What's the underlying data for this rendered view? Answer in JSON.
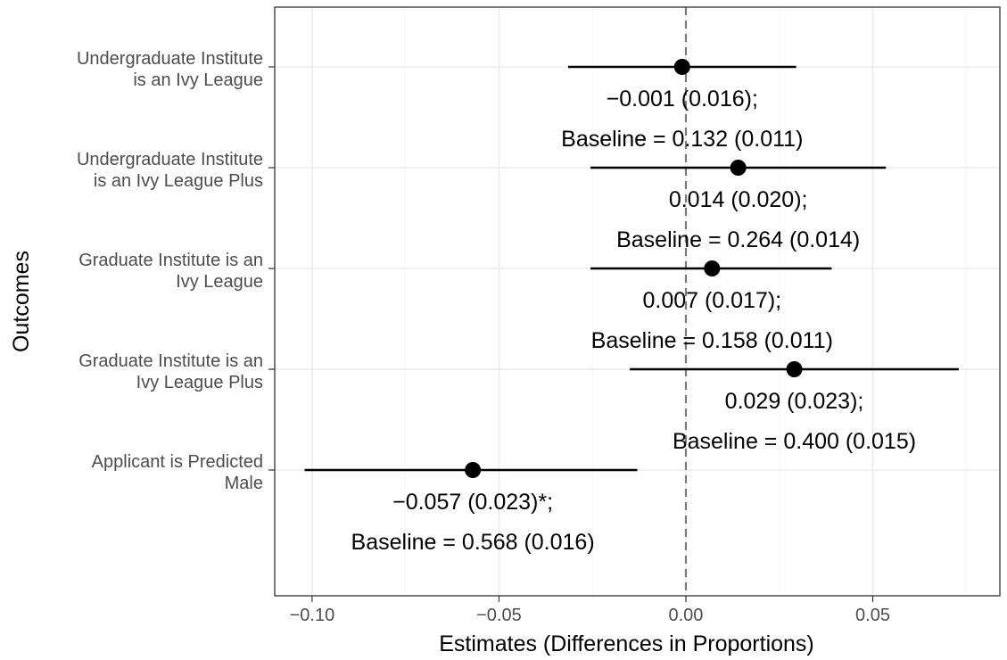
{
  "chart_data": {
    "type": "scatter",
    "title": "",
    "xlabel": "Estimates (Differences in Proportions)",
    "ylabel": "Outcomes",
    "xlim": [
      -0.11,
      0.084
    ],
    "xticks": [
      -0.1,
      -0.05,
      0.0,
      0.05
    ],
    "xtick_labels": [
      "−0.10",
      "−0.05",
      "0.00",
      "0.05"
    ],
    "reference_line": {
      "x": 0,
      "style": "dashed"
    },
    "grid": true,
    "outcomes": [
      {
        "label_lines": [
          "Undergraduate Institute",
          "is an Ivy League"
        ],
        "estimate": -0.001,
        "ci_low": -0.0315,
        "ci_high": 0.0295,
        "annotation_lines": [
          "−0.001 (0.016);",
          "Baseline = 0.132 (0.011)"
        ]
      },
      {
        "label_lines": [
          "Undergraduate Institute",
          "is an Ivy League Plus"
        ],
        "estimate": 0.014,
        "ci_low": -0.0255,
        "ci_high": 0.0535,
        "annotation_lines": [
          "0.014 (0.020);",
          "Baseline = 0.264 (0.014)"
        ]
      },
      {
        "label_lines": [
          "Graduate Institute is an",
          "Ivy League"
        ],
        "estimate": 0.007,
        "ci_low": -0.0255,
        "ci_high": 0.039,
        "annotation_lines": [
          "0.007 (0.017);",
          "Baseline = 0.158 (0.011)"
        ]
      },
      {
        "label_lines": [
          "Graduate Institute is an",
          "Ivy League Plus"
        ],
        "estimate": 0.029,
        "ci_low": -0.015,
        "ci_high": 0.073,
        "annotation_lines": [
          "0.029 (0.023);",
          "Baseline = 0.400 (0.015)"
        ]
      },
      {
        "label_lines": [
          "Applicant is Predicted",
          "Male"
        ],
        "estimate": -0.057,
        "ci_low": -0.102,
        "ci_high": -0.013,
        "annotation_lines": [
          "−0.057 (0.023)*;",
          "Baseline = 0.568 (0.016)"
        ]
      }
    ]
  }
}
